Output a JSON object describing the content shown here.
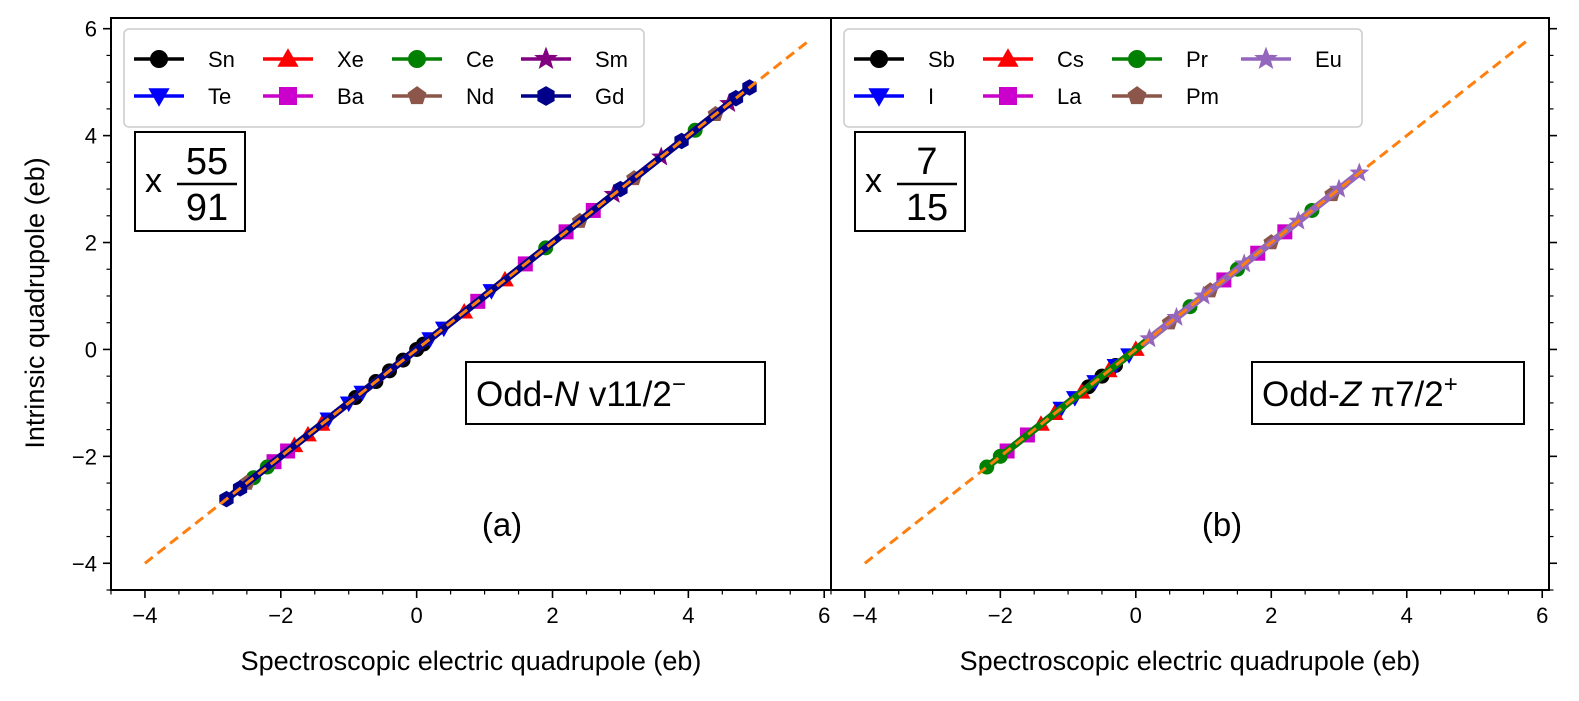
{
  "figure": {
    "ylabel": "Intrinsic quadrupole (eb)"
  },
  "chart_data": [
    {
      "type": "scatter",
      "panel_label": "(a)",
      "xlabel": "Spectroscopic electric quadrupole (eb)",
      "ylabel": "Intrinsic quadrupole (eb)",
      "xlim": [
        -4.5,
        6.1
      ],
      "ylim": [
        -4.5,
        6.2
      ],
      "xticks": [
        -4,
        -2,
        0,
        2,
        4,
        6
      ],
      "yticks": [
        -4,
        -2,
        0,
        2,
        4,
        6
      ],
      "tick_labels": [
        "−4",
        "−2",
        "0",
        "2",
        "4",
        "6"
      ],
      "scale_factor": {
        "prefix": "x",
        "numerator": "55",
        "denominator": "91"
      },
      "annotation": {
        "prefix": "Odd-",
        "italic": "N",
        "rest": " v11/2",
        "superscript": "−"
      },
      "reference_line": {
        "style": "dashed",
        "color": "#ff7f0e",
        "x": [
          -4.0,
          5.8
        ],
        "y": [
          -4.0,
          5.8
        ]
      },
      "legend": {
        "location": "top-left",
        "columns": 4
      },
      "series": [
        {
          "name": "Sn",
          "color": "#000000",
          "marker": "circle",
          "x": [
            -0.9,
            -0.6,
            -0.4,
            -0.2,
            0.0,
            0.1
          ],
          "y": [
            -0.9,
            -0.6,
            -0.4,
            -0.2,
            0.0,
            0.1
          ]
        },
        {
          "name": "Te",
          "color": "#0000ff",
          "marker": "triangle-down",
          "x": [
            -1.3,
            -1.0,
            -0.8,
            0.2,
            0.4,
            1.1
          ],
          "y": [
            -1.3,
            -1.0,
            -0.8,
            0.2,
            0.4,
            1.1
          ]
        },
        {
          "name": "Xe",
          "color": "#ff0000",
          "marker": "triangle-up",
          "x": [
            -1.8,
            -1.6,
            -1.4,
            0.7,
            1.3
          ],
          "y": [
            -1.8,
            -1.6,
            -1.4,
            0.7,
            1.3
          ]
        },
        {
          "name": "Ba",
          "color": "#cc00cc",
          "marker": "square",
          "x": [
            -2.1,
            -1.9,
            0.9,
            1.6,
            2.2,
            2.6
          ],
          "y": [
            -2.1,
            -1.9,
            0.9,
            1.6,
            2.2,
            2.6
          ]
        },
        {
          "name": "Ce",
          "color": "#008000",
          "marker": "circle",
          "x": [
            -2.4,
            -2.2,
            1.9,
            4.1
          ],
          "y": [
            -2.4,
            -2.2,
            1.9,
            4.1
          ]
        },
        {
          "name": "Nd",
          "color": "#8c564b",
          "marker": "pentagon",
          "x": [
            -2.5,
            2.4,
            3.2,
            4.4
          ],
          "y": [
            -2.5,
            2.4,
            3.2,
            4.4
          ]
        },
        {
          "name": "Sm",
          "color": "#800080",
          "marker": "star",
          "x": [
            2.9,
            3.6,
            4.6
          ],
          "y": [
            2.9,
            3.6,
            4.6
          ]
        },
        {
          "name": "Gd",
          "color": "#00008b",
          "marker": "hexagon",
          "x": [
            -2.8,
            -2.6,
            3.0,
            3.9,
            4.7,
            4.9
          ],
          "y": [
            -2.8,
            -2.6,
            3.0,
            3.9,
            4.7,
            4.9
          ]
        }
      ]
    },
    {
      "type": "scatter",
      "panel_label": "(b)",
      "xlabel": "Spectroscopic electric quadrupole (eb)",
      "xlim": [
        -4.5,
        6.1
      ],
      "ylim": [
        -4.5,
        6.2
      ],
      "xticks": [
        -4,
        -2,
        0,
        2,
        4,
        6
      ],
      "tick_labels": [
        "−4",
        "−2",
        "0",
        "2",
        "4",
        "6"
      ],
      "scale_factor": {
        "prefix": "x",
        "numerator": "7",
        "denominator": "15"
      },
      "annotation": {
        "prefix": "Odd-",
        "italic": "Z",
        "rest": " π7/2",
        "superscript": "+"
      },
      "reference_line": {
        "style": "dashed",
        "color": "#ff7f0e",
        "x": [
          -4.0,
          5.8
        ],
        "y": [
          -4.0,
          5.8
        ]
      },
      "legend": {
        "location": "top-left",
        "columns": 4
      },
      "series": [
        {
          "name": "Sb",
          "color": "#000000",
          "marker": "circle",
          "x": [
            -0.7,
            -0.5,
            -0.3
          ],
          "y": [
            -0.7,
            -0.5,
            -0.3
          ]
        },
        {
          "name": "I",
          "color": "#0000ff",
          "marker": "triangle-down",
          "x": [
            -1.1,
            -0.9,
            -0.6,
            -0.3,
            -0.1
          ],
          "y": [
            -1.1,
            -0.9,
            -0.6,
            -0.3,
            -0.1
          ]
        },
        {
          "name": "Cs",
          "color": "#ff0000",
          "marker": "triangle-up",
          "x": [
            -1.4,
            -1.2,
            -0.8,
            -0.4,
            0.0
          ],
          "y": [
            -1.4,
            -1.2,
            -0.8,
            -0.4,
            0.0
          ]
        },
        {
          "name": "La",
          "color": "#cc00cc",
          "marker": "square",
          "x": [
            -1.9,
            -1.6,
            1.3,
            1.8,
            2.2
          ],
          "y": [
            -1.9,
            -1.6,
            1.3,
            1.8,
            2.2
          ]
        },
        {
          "name": "Pr",
          "color": "#008000",
          "marker": "circle",
          "x": [
            -2.2,
            -2.0,
            0.8,
            1.5,
            2.6
          ],
          "y": [
            -2.2,
            -2.0,
            0.8,
            1.5,
            2.6
          ]
        },
        {
          "name": "Pm",
          "color": "#8c564b",
          "marker": "pentagon",
          "x": [
            0.5,
            1.1,
            2.0,
            2.9
          ],
          "y": [
            0.5,
            1.1,
            2.0,
            2.9
          ]
        },
        {
          "name": "Eu",
          "color": "#9467bd",
          "marker": "star",
          "x": [
            0.2,
            0.6,
            1.0,
            1.6,
            2.4,
            3.0,
            3.3
          ],
          "y": [
            0.2,
            0.6,
            1.0,
            1.6,
            2.4,
            3.0,
            3.3
          ]
        }
      ]
    }
  ]
}
